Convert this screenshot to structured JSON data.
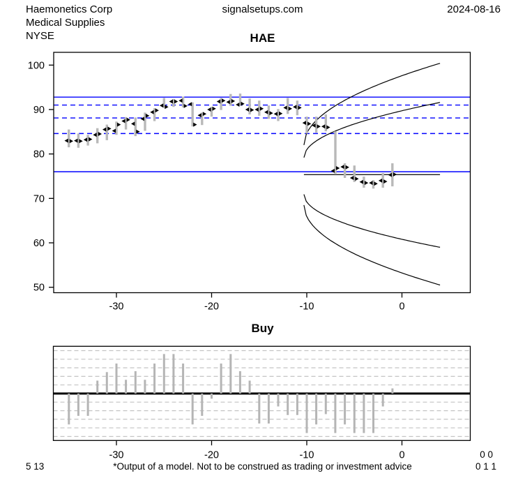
{
  "header": {
    "company": "Haemonetics Corp",
    "industry": "Medical Supplies",
    "exchange": "NYSE",
    "website": "signalsetups.com",
    "date": "2024-08-16"
  },
  "footer": {
    "left_numbers": "5 13",
    "disclaimer": "*Output of a model. Not to be construed as trading or investment advice",
    "right_numbers_top": "0 0",
    "right_numbers_bottom": "0 1 1"
  },
  "colors": {
    "level_lines": "#0000ff",
    "ohlc_gray": "#b9b9b9",
    "buy_bar_gray": "#b5b5b5",
    "grid_gray": "#c3c3c3",
    "curve_black": "#000000",
    "marker_black": "#000000"
  },
  "chart_data": [
    {
      "type": "ohlc",
      "title": "HAE",
      "xlabel": "",
      "ylabel": "",
      "xlim": [
        -36.6,
        7.2
      ],
      "ylim": [
        48.8,
        102.9
      ],
      "x_ticks": [
        -30,
        -20,
        -10,
        0
      ],
      "y_ticks": [
        50,
        60,
        70,
        80,
        90,
        100
      ],
      "grid": "off",
      "solid_levels": [
        92.8,
        76.0
      ],
      "dashed_levels": [
        91.0,
        88.1,
        84.6
      ],
      "forecast_line": {
        "y": 75.35,
        "x_start": -10.3,
        "x_end": 4.0
      },
      "fan_curves": [
        {
          "x_start": -10.3,
          "y_start": 82.0,
          "x_end": 4.0,
          "y_end": 100.4
        },
        {
          "x_start": -10.3,
          "y_start": 79.2,
          "x_end": 4.0,
          "y_end": 91.6
        },
        {
          "x_start": -10.3,
          "y_start": 70.9,
          "x_end": 4.0,
          "y_end": 59.0
        },
        {
          "x_start": -10.3,
          "y_start": 68.5,
          "x_end": 4.0,
          "y_end": 50.5
        }
      ],
      "ohlc": [
        {
          "x": -35,
          "o": 83.0,
          "h": 85.5,
          "l": 81.5,
          "c": 82.9
        },
        {
          "x": -34,
          "o": 83.0,
          "h": 84.6,
          "l": 81.4,
          "c": 82.9
        },
        {
          "x": -33,
          "o": 83.2,
          "h": 84.3,
          "l": 81.9,
          "c": 83.3
        },
        {
          "x": -32,
          "o": 84.3,
          "h": 85.8,
          "l": 82.4,
          "c": 84.5
        },
        {
          "x": -31,
          "o": 85.5,
          "h": 86.6,
          "l": 83.1,
          "c": 85.7
        },
        {
          "x": -30,
          "o": 85.2,
          "h": 87.3,
          "l": 84.3,
          "c": 86.6
        },
        {
          "x": -29,
          "o": 87.4,
          "h": 88.3,
          "l": 85.5,
          "c": 87.7
        },
        {
          "x": -28,
          "o": 86.8,
          "h": 88.2,
          "l": 84.0,
          "c": 85.0
        },
        {
          "x": -27,
          "o": 87.9,
          "h": 89.3,
          "l": 85.2,
          "c": 88.6
        },
        {
          "x": -26,
          "o": 89.4,
          "h": 90.3,
          "l": 87.4,
          "c": 89.8
        },
        {
          "x": -25,
          "o": 90.9,
          "h": 92.6,
          "l": 90.4,
          "c": 90.6
        },
        {
          "x": -24,
          "o": 91.8,
          "h": 92.4,
          "l": 90.6,
          "c": 91.8
        },
        {
          "x": -23,
          "o": 92.0,
          "h": 92.9,
          "l": 90.5,
          "c": 90.8
        },
        {
          "x": -22,
          "o": 91.2,
          "h": 91.6,
          "l": 86.2,
          "c": 86.6
        },
        {
          "x": -21,
          "o": 88.7,
          "h": 89.3,
          "l": 86.5,
          "c": 89.0
        },
        {
          "x": -20,
          "o": 90.0,
          "h": 90.6,
          "l": 88.4,
          "c": 90.2
        },
        {
          "x": -19,
          "o": 91.8,
          "h": 92.6,
          "l": 89.9,
          "c": 92.0
        },
        {
          "x": -18,
          "o": 91.7,
          "h": 93.5,
          "l": 90.9,
          "c": 91.9
        },
        {
          "x": -17,
          "o": 91.1,
          "h": 93.6,
          "l": 90.9,
          "c": 91.3
        },
        {
          "x": -16,
          "o": 90.0,
          "h": 92.5,
          "l": 88.9,
          "c": 89.9
        },
        {
          "x": -15,
          "o": 90.0,
          "h": 92.0,
          "l": 88.6,
          "c": 90.2
        },
        {
          "x": -14,
          "o": 89.4,
          "h": 90.9,
          "l": 87.9,
          "c": 89.2
        },
        {
          "x": -13,
          "o": 89.0,
          "h": 90.1,
          "l": 87.4,
          "c": 89.1
        },
        {
          "x": -12,
          "o": 90.4,
          "h": 92.6,
          "l": 89.0,
          "c": 90.2
        },
        {
          "x": -11,
          "o": 90.6,
          "h": 92.0,
          "l": 88.7,
          "c": 90.4
        },
        {
          "x": -10,
          "o": 87.0,
          "h": 88.4,
          "l": 84.6,
          "c": 86.8
        },
        {
          "x": -9,
          "o": 86.4,
          "h": 88.4,
          "l": 84.8,
          "c": 86.2
        },
        {
          "x": -8,
          "o": 86.2,
          "h": 88.9,
          "l": 85.1,
          "c": 86.0
        },
        {
          "x": -7,
          "o": 76.2,
          "h": 85.1,
          "l": 75.4,
          "c": 76.8
        },
        {
          "x": -6,
          "o": 77.1,
          "h": 77.9,
          "l": 74.6,
          "c": 77.0
        },
        {
          "x": -5,
          "o": 74.6,
          "h": 77.4,
          "l": 73.7,
          "c": 74.4
        },
        {
          "x": -4,
          "o": 73.7,
          "h": 74.9,
          "l": 72.4,
          "c": 73.5
        },
        {
          "x": -3,
          "o": 73.5,
          "h": 74.1,
          "l": 72.2,
          "c": 73.3
        },
        {
          "x": -2,
          "o": 74.0,
          "h": 75.7,
          "l": 72.4,
          "c": 73.8
        },
        {
          "x": -1,
          "o": 75.3,
          "h": 77.9,
          "l": 72.7,
          "c": 75.4
        }
      ]
    },
    {
      "type": "bar",
      "title": "Buy",
      "xlabel": "",
      "ylabel": "",
      "xlim": [
        -36.6,
        7.2
      ],
      "ylim": [
        -5.5,
        5.5
      ],
      "x_ticks": [
        -30,
        -20,
        -10,
        0
      ],
      "grid": "dashed horizontal at integer levels",
      "grid_levels": [
        -5,
        -4,
        -3,
        -2,
        -1,
        1,
        2,
        3,
        4,
        5
      ],
      "x": [
        -35,
        -34,
        -33,
        -32,
        -31,
        -30,
        -29,
        -28,
        -27,
        -26,
        -25,
        -24,
        -23,
        -22,
        -21,
        -20,
        -19,
        -18,
        -17,
        -16,
        -15,
        -14,
        -13,
        -12,
        -11,
        -10,
        -9,
        -8,
        -7,
        -6,
        -5,
        -4,
        -3,
        -2,
        -1
      ],
      "values": [
        -3.6,
        -2.6,
        -2.6,
        1.5,
        2.5,
        3.5,
        1.6,
        2.6,
        1.6,
        3.5,
        4.6,
        4.6,
        3.5,
        -3.6,
        -2.6,
        -0.6,
        3.5,
        4.6,
        2.6,
        1.5,
        -3.5,
        -3.5,
        -1.5,
        -2.5,
        -2.5,
        -4.6,
        -3.6,
        -2.4,
        -4.6,
        -3.6,
        -4.6,
        -4.6,
        -4.6,
        -1.5,
        0.6
      ]
    }
  ]
}
